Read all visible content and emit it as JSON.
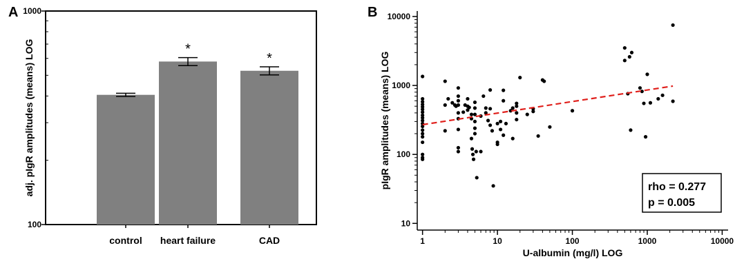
{
  "chart_data": [
    {
      "panel": "A",
      "type": "bar",
      "scale_y": "log",
      "ylim": [
        100,
        1000
      ],
      "ylabel": "adj. pIgR amplitudes (means) LOG",
      "xlabel": "",
      "ticks_y": [
        {
          "value": 100,
          "label": "100"
        },
        {
          "value": 1000,
          "label": "1000"
        }
      ],
      "categories": [
        "control",
        "heart failure",
        "CAD"
      ],
      "values": [
        405,
        580,
        525
      ],
      "error_low": [
        398,
        555,
        502
      ],
      "error_high": [
        412,
        605,
        548
      ],
      "annotations": [
        "",
        "*",
        "*"
      ],
      "bar_color": "#808080",
      "grid": false
    },
    {
      "panel": "B",
      "type": "scatter",
      "scale_x": "log",
      "scale_y": "log",
      "xlim": [
        0.85,
        12000
      ],
      "ylim": [
        8,
        12000
      ],
      "xlabel": "U-albumin (mg/l) LOG",
      "ylabel": "pIgR amplitudes (means) LOG",
      "ticks_x": [
        {
          "value": 1,
          "label": "1"
        },
        {
          "value": 10,
          "label": "10"
        },
        {
          "value": 100,
          "label": "100"
        },
        {
          "value": 1000,
          "label": "1000"
        },
        {
          "value": 10000,
          "label": "10000"
        }
      ],
      "ticks_y": [
        {
          "value": 10,
          "label": "10"
        },
        {
          "value": 100,
          "label": "100"
        },
        {
          "value": 1000,
          "label": "1000"
        },
        {
          "value": 10000,
          "label": "10000"
        }
      ],
      "grid": false,
      "point_color": "#000000",
      "trend_color": "#e0201c",
      "trend_line": {
        "x": [
          1,
          2200
        ],
        "y": [
          270,
          980
        ]
      },
      "stats": {
        "rho": "rho = 0.277",
        "p": "p = 0.005"
      },
      "points": [
        [
          1,
          1350
        ],
        [
          1,
          640
        ],
        [
          1,
          580
        ],
        [
          1,
          530
        ],
        [
          1,
          490
        ],
        [
          1,
          450
        ],
        [
          1,
          410
        ],
        [
          1,
          370
        ],
        [
          1,
          340
        ],
        [
          1,
          310
        ],
        [
          1,
          280
        ],
        [
          1,
          255
        ],
        [
          1,
          225
        ],
        [
          1,
          200
        ],
        [
          1,
          180
        ],
        [
          1,
          150
        ],
        [
          1,
          100
        ],
        [
          1,
          90
        ],
        [
          1,
          85
        ],
        [
          2,
          1150
        ],
        [
          2,
          520
        ],
        [
          2,
          220
        ],
        [
          2.2,
          640
        ],
        [
          2.5,
          560
        ],
        [
          2.7,
          520
        ],
        [
          2.8,
          500
        ],
        [
          3,
          920
        ],
        [
          3,
          700
        ],
        [
          3,
          600
        ],
        [
          3,
          520
        ],
        [
          3,
          400
        ],
        [
          3,
          330
        ],
        [
          3,
          230
        ],
        [
          3,
          125
        ],
        [
          3,
          110
        ],
        [
          3.5,
          410
        ],
        [
          3.7,
          520
        ],
        [
          4,
          640
        ],
        [
          4,
          500
        ],
        [
          4,
          440
        ],
        [
          4.2,
          480
        ],
        [
          4.5,
          380
        ],
        [
          4.5,
          330
        ],
        [
          4.5,
          170
        ],
        [
          4.6,
          120
        ],
        [
          4.7,
          100
        ],
        [
          4.8,
          85
        ],
        [
          5,
          570
        ],
        [
          5,
          470
        ],
        [
          5,
          380
        ],
        [
          5,
          300
        ],
        [
          5,
          240
        ],
        [
          5,
          200
        ],
        [
          5.2,
          110
        ],
        [
          5.3,
          46
        ],
        [
          6,
          360
        ],
        [
          6,
          110
        ],
        [
          6.5,
          700
        ],
        [
          7,
          470
        ],
        [
          7,
          400
        ],
        [
          7.5,
          310
        ],
        [
          8,
          860
        ],
        [
          8,
          460
        ],
        [
          8,
          265
        ],
        [
          8.5,
          220
        ],
        [
          8.8,
          35
        ],
        [
          10,
          150
        ],
        [
          10,
          140
        ],
        [
          10,
          280
        ],
        [
          11,
          230
        ],
        [
          11,
          300
        ],
        [
          12,
          850
        ],
        [
          12,
          600
        ],
        [
          12,
          190
        ],
        [
          13,
          280
        ],
        [
          15,
          430
        ],
        [
          16,
          170
        ],
        [
          16,
          470
        ],
        [
          18,
          550
        ],
        [
          18,
          500
        ],
        [
          18,
          400
        ],
        [
          18,
          320
        ],
        [
          20,
          1300
        ],
        [
          25,
          380
        ],
        [
          30,
          460
        ],
        [
          30,
          420
        ],
        [
          35,
          185
        ],
        [
          40,
          1200
        ],
        [
          42,
          1150
        ],
        [
          50,
          250
        ],
        [
          100,
          430
        ],
        [
          500,
          3500
        ],
        [
          500,
          2300
        ],
        [
          550,
          760
        ],
        [
          580,
          2600
        ],
        [
          600,
          225
        ],
        [
          620,
          3000
        ],
        [
          800,
          920
        ],
        [
          850,
          820
        ],
        [
          900,
          550
        ],
        [
          950,
          180
        ],
        [
          1000,
          1450
        ],
        [
          1100,
          560
        ],
        [
          1400,
          640
        ],
        [
          1600,
          720
        ],
        [
          2200,
          7500
        ],
        [
          2200,
          590
        ]
      ]
    }
  ]
}
